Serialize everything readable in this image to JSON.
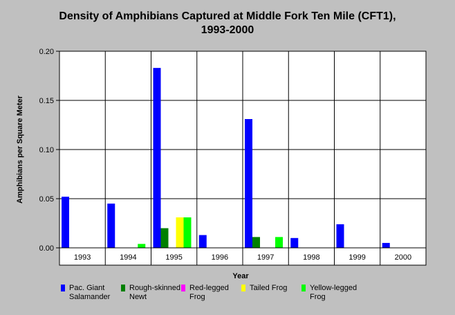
{
  "chart_data": {
    "type": "bar",
    "title": "Density of Amphibians Captured at Middle Fork Ten Mile (CFT1),",
    "subtitle": "1993-2000",
    "xlabel": "Year",
    "ylabel": "Amphibians per Square Meter",
    "ylim": [
      0,
      0.2
    ],
    "yticks": [
      "0.00",
      "0.05",
      "0.10",
      "0.15",
      "0.20"
    ],
    "grid": true,
    "legend_position": "bottom",
    "categories": [
      "1993",
      "1994",
      "1995",
      "1996",
      "1997",
      "1998",
      "1999",
      "2000"
    ],
    "series": [
      {
        "name": "Pac. Giant Salamander",
        "color": "#0000ff",
        "values": [
          0.052,
          0.045,
          0.183,
          0.013,
          0.131,
          0.01,
          0.024,
          0.005
        ]
      },
      {
        "name": "Rough-skinned Newt",
        "color": "#008000",
        "values": [
          0,
          0,
          0.02,
          0,
          0.011,
          0,
          0,
          0
        ]
      },
      {
        "name": "Red-legged Frog",
        "color": "#ff00ff",
        "values": [
          0,
          0,
          0,
          0,
          0,
          0,
          0,
          0
        ]
      },
      {
        "name": "Tailed Frog",
        "color": "#ffff00",
        "values": [
          0,
          0,
          0.031,
          0,
          0,
          0,
          0,
          0
        ]
      },
      {
        "name": "Yellow-legged Frog",
        "color": "#00ff00",
        "values": [
          0,
          0.004,
          0.031,
          0,
          0.011,
          0,
          0,
          0
        ]
      }
    ]
  }
}
